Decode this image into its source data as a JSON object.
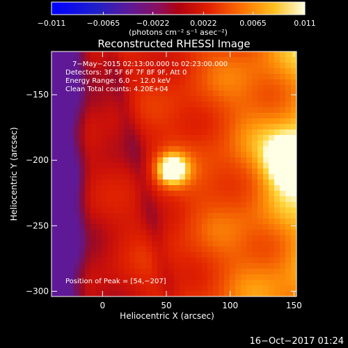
{
  "chart_data": {
    "type": "heatmap",
    "title": "Reconstructed RHESSI Image",
    "xlabel": "Heliocentric X (arcsec)",
    "ylabel": "Heliocentric Y (arcsec)",
    "xlim": [
      -40,
      152
    ],
    "ylim": [
      -304,
      -117
    ],
    "x_ticks": [
      0,
      50,
      100,
      150
    ],
    "x_tick_labels": [
      "0",
      "50",
      "100",
      "150"
    ],
    "y_ticks": [
      -150,
      -200,
      -250,
      -300
    ],
    "y_tick_labels": [
      "−150",
      "−200",
      "−250",
      "−300"
    ],
    "colorbar": {
      "range": [
        -0.011,
        0.011
      ],
      "ticks": [
        -0.011,
        -0.0065,
        -0.0022,
        0.0022,
        0.0065,
        0.011
      ],
      "tick_labels": [
        "−0.011",
        "−0.0065",
        "−0.0022",
        "0.0022",
        "0.0065",
        "0.011"
      ],
      "unit_label": "(photons cm⁻² s⁻¹ asec⁻²)",
      "colormap": "rainbow-blue-purple-red-orange-yellow-white"
    },
    "annotations": [
      "7−May−2015 02:13:00.000 to 02:23:00.000",
      "Detectors: 3F 5F 6F 7F 8F 9F, Att 0",
      "Energy Range: 6.0 − 12.0 keV",
      "Clean     Total counts: 4.20E+04"
    ],
    "peak_label": "Position of Peak = [54,−207]",
    "peaks": [
      {
        "x": 54,
        "y": -207,
        "level": 1.0,
        "sigma": 9
      },
      {
        "x": 148,
        "y": -200,
        "level": 0.95,
        "sigma": 14
      }
    ],
    "grid": false
  },
  "footer": {
    "timestamp": "16−Oct−2017 01:24"
  },
  "colors": {
    "background": "#000000",
    "foreground": "#ffffff"
  }
}
